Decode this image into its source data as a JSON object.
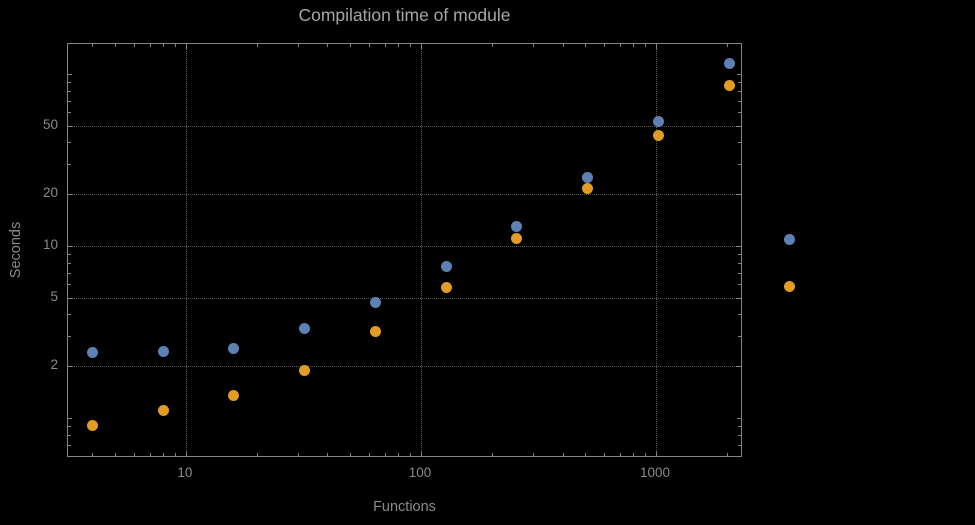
{
  "figure": {
    "background": "#000000",
    "frame_color": "#848484",
    "grid_color": "#575757",
    "title_color": "#a6a6a6",
    "label_color": "#8a8a8a"
  },
  "chart_data": {
    "type": "scatter",
    "title": "Compilation time of module",
    "xlabel": "Functions",
    "ylabel": "Seconds",
    "x_scale": "log",
    "y_scale": "log",
    "grid": "dotted",
    "legend_position": "right-outside",
    "x": [
      4,
      8,
      16,
      32,
      64,
      128,
      256,
      512,
      1024,
      2048
    ],
    "series": [
      {
        "name": "blue",
        "color": "#5e81b5",
        "values": [
          2.4,
          2.45,
          2.55,
          3.3,
          4.7,
          7.6,
          13,
          25,
          53,
          115
        ]
      },
      {
        "name": "orange",
        "color": "#e19c24",
        "values": [
          0.9,
          1.1,
          1.35,
          1.9,
          3.2,
          5.7,
          11,
          21.5,
          44,
          86
        ]
      }
    ],
    "xlim": [
      3.15,
      2344
    ],
    "ylim": [
      0.585,
      149
    ],
    "x_ticks": [
      {
        "value": 10,
        "label": "10"
      },
      {
        "value": 100,
        "label": "100"
      },
      {
        "value": 1000,
        "label": "1000"
      }
    ],
    "y_ticks": [
      {
        "value": 2,
        "label": "2"
      },
      {
        "value": 5,
        "label": "5"
      },
      {
        "value": 10,
        "label": "10"
      },
      {
        "value": 20,
        "label": "20"
      },
      {
        "value": 50,
        "label": "50"
      }
    ],
    "x_gridlines": [
      10,
      100,
      1000
    ],
    "y_gridlines": [
      2,
      5,
      10,
      20,
      50
    ]
  },
  "legend": {
    "markers": [
      {
        "color": "#5e81b5"
      },
      {
        "color": "#e19c24"
      }
    ]
  }
}
